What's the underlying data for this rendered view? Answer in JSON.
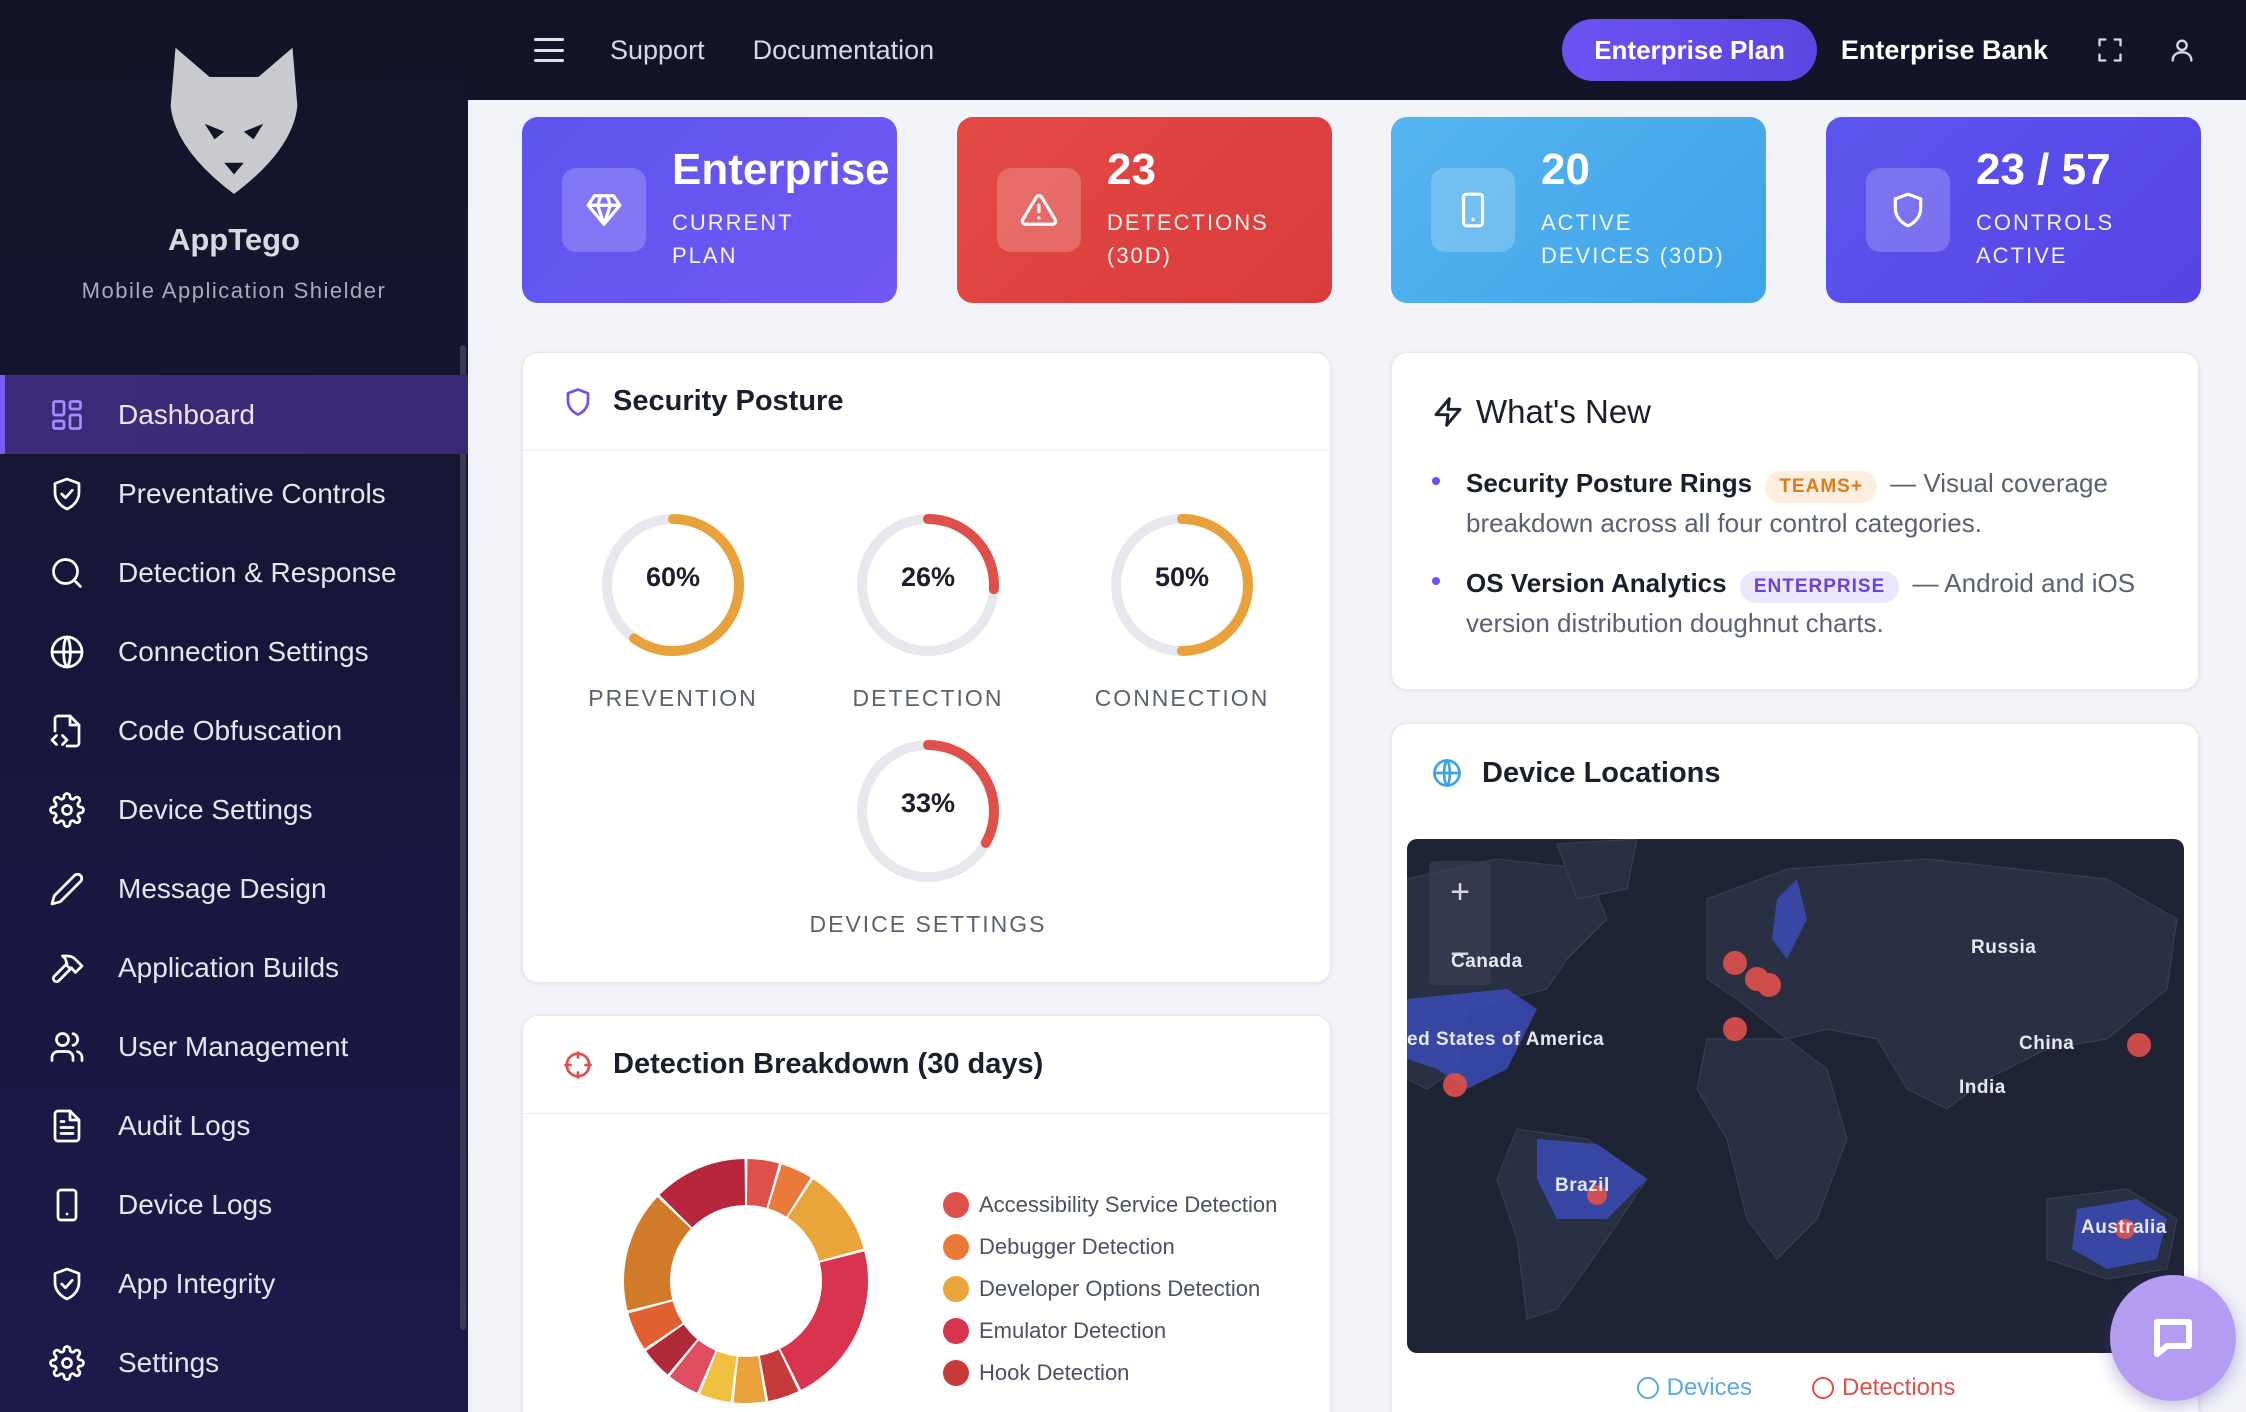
{
  "brand": {
    "name": "AppTego",
    "subtitle": "Mobile Application Shielder"
  },
  "sidebar": {
    "items": [
      {
        "label": "Dashboard",
        "icon": "dashboard-icon",
        "active": true
      },
      {
        "label": "Preventative Controls",
        "icon": "shield-check-icon"
      },
      {
        "label": "Detection & Response",
        "icon": "search-icon"
      },
      {
        "label": "Connection Settings",
        "icon": "globe-icon"
      },
      {
        "label": "Code Obfuscation",
        "icon": "file-code-icon"
      },
      {
        "label": "Device Settings",
        "icon": "gear-icon"
      },
      {
        "label": "Message Design",
        "icon": "pencil-icon"
      },
      {
        "label": "Application Builds",
        "icon": "hammer-icon"
      },
      {
        "label": "User Management",
        "icon": "users-icon"
      },
      {
        "label": "Audit Logs",
        "icon": "document-icon"
      },
      {
        "label": "Device Logs",
        "icon": "phone-icon"
      },
      {
        "label": "App Integrity",
        "icon": "shield-check-icon"
      },
      {
        "label": "Settings",
        "icon": "gear-icon"
      }
    ]
  },
  "topbar": {
    "links": [
      "Support",
      "Documentation"
    ],
    "plan_button": "Enterprise Plan",
    "org_name": "Enterprise Bank"
  },
  "stats": [
    {
      "value": "Enterprise",
      "label": "CURRENT\nPLAN",
      "icon": "diamond-icon"
    },
    {
      "value": "23",
      "label": "DETECTIONS\n(30D)",
      "icon": "warning-icon"
    },
    {
      "value": "20",
      "label": "ACTIVE\nDEVICES (30D)",
      "icon": "phone-icon"
    },
    {
      "value": "23 / 57",
      "label": "CONTROLS\nACTIVE",
      "icon": "shield-icon"
    }
  ],
  "posture": {
    "title": "Security Posture",
    "rings": [
      {
        "label": "PREVENTION",
        "value": "60%",
        "percent": 60,
        "color": "#e9a23b"
      },
      {
        "label": "DETECTION",
        "value": "26%",
        "percent": 26,
        "color": "#e0504a"
      },
      {
        "label": "CONNECTION",
        "value": "50%",
        "percent": 50,
        "color": "#e9a23b"
      },
      {
        "label": "DEVICE SETTINGS",
        "value": "33%",
        "percent": 33,
        "color": "#e0504a"
      }
    ]
  },
  "breakdown": {
    "title": "Detection Breakdown (30 days)",
    "legend": [
      {
        "label": "Accessibility Service Detection",
        "color": "#e0504a"
      },
      {
        "label": "Debugger Detection",
        "color": "#ea7a3a"
      },
      {
        "label": "Developer Options Detection",
        "color": "#eaa53a"
      },
      {
        "label": "Emulator Detection",
        "color": "#d9344f"
      },
      {
        "label": "Hook Detection",
        "color": "#c73a3a"
      }
    ]
  },
  "news": {
    "title": "What's New",
    "items": [
      {
        "name": "Security Posture Rings",
        "tag": "TEAMS+",
        "text": "— Visual coverage breakdown across all four control categories."
      },
      {
        "name": "OS Version Analytics",
        "tag": "ENTERPRISE",
        "text": "— Android and iOS version distribution doughnut charts."
      }
    ]
  },
  "locations": {
    "title": "Device Locations",
    "zoom_in": "+",
    "zoom_out": "−",
    "countries": [
      "Canada",
      "ed States of America",
      "Russia",
      "China",
      "India",
      "Brazil",
      "Australia"
    ],
    "legend": [
      {
        "label": "Devices",
        "color": "#5aa9e6"
      },
      {
        "label": "Detections",
        "color": "#e0504a"
      }
    ]
  }
}
